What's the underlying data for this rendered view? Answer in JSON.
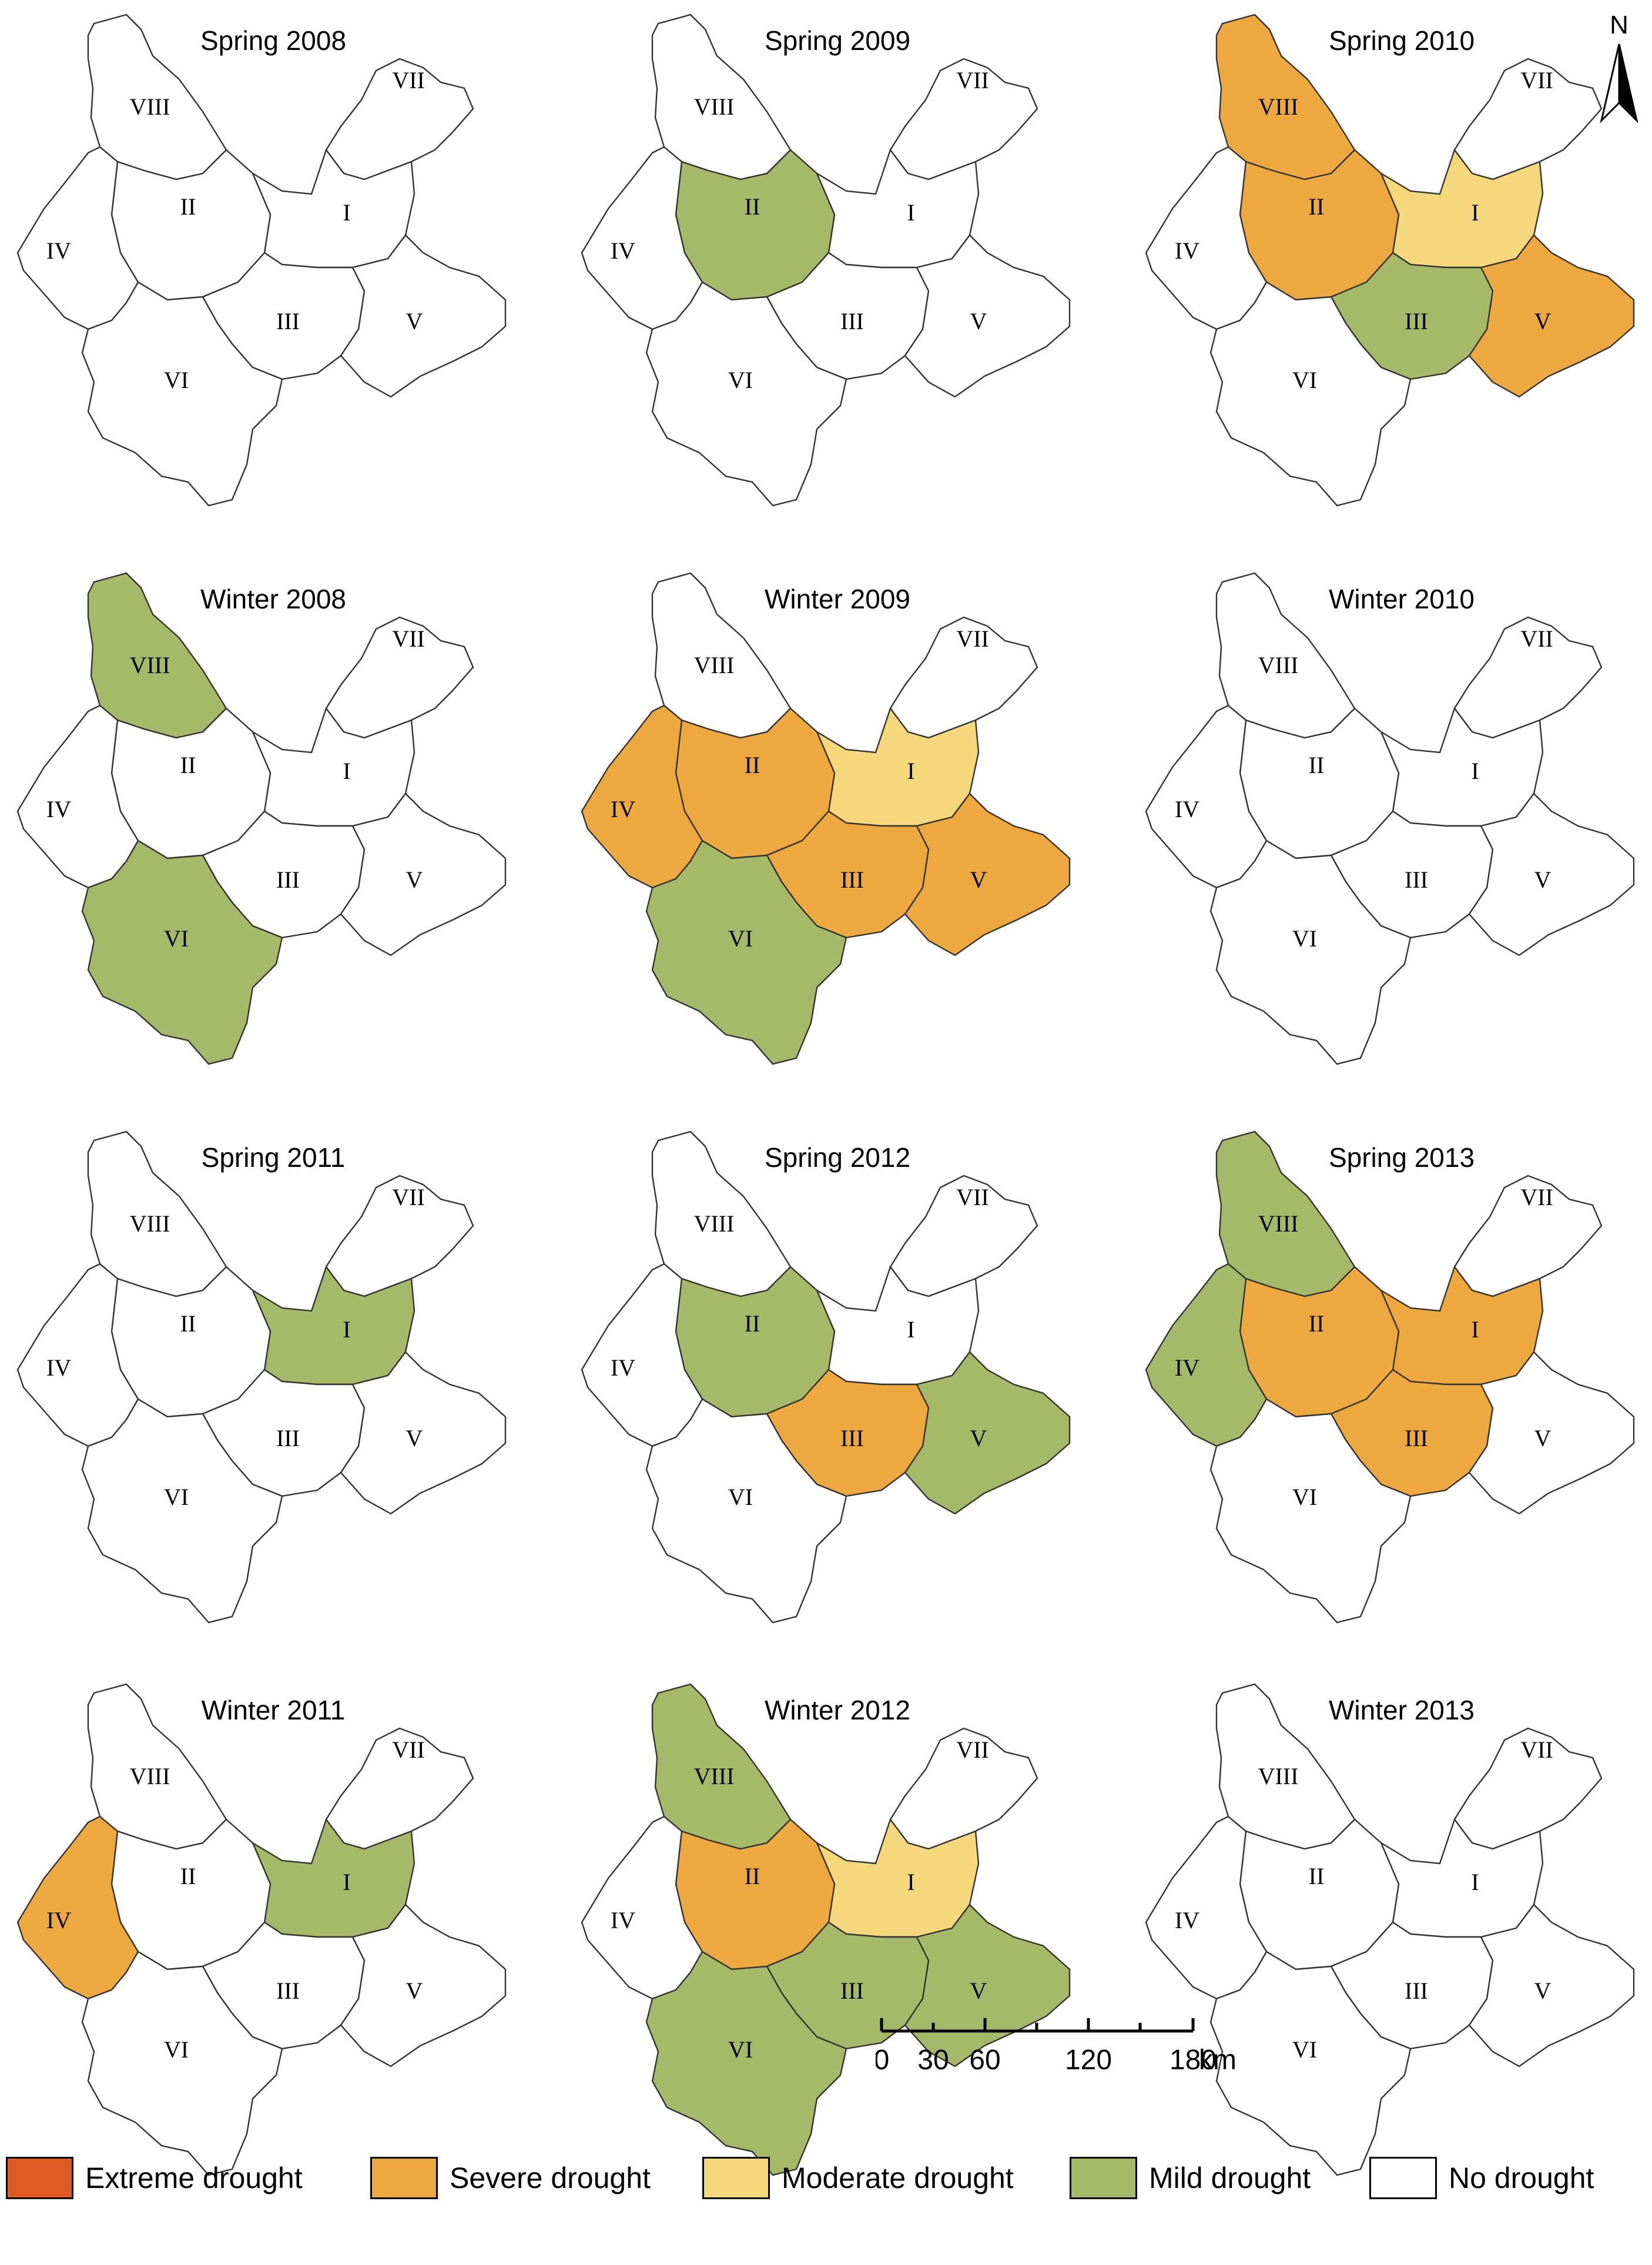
{
  "panels": [
    {
      "title": "Spring 2008",
      "regions": {
        "I": "none",
        "II": "none",
        "III": "none",
        "IV": "none",
        "V": "none",
        "VI": "none",
        "VII": "none",
        "VIII": "none"
      }
    },
    {
      "title": "Spring 2009",
      "regions": {
        "I": "none",
        "II": "mild",
        "III": "none",
        "IV": "none",
        "V": "none",
        "VI": "none",
        "VII": "none",
        "VIII": "none"
      }
    },
    {
      "title": "Spring 2010",
      "regions": {
        "I": "moderate",
        "II": "severe",
        "III": "mild",
        "IV": "none",
        "V": "severe",
        "VI": "none",
        "VII": "none",
        "VIII": "severe"
      }
    },
    {
      "title": "Winter 2008",
      "regions": {
        "I": "none",
        "II": "none",
        "III": "none",
        "IV": "none",
        "V": "none",
        "VI": "mild",
        "VII": "none",
        "VIII": "mild"
      }
    },
    {
      "title": "Winter 2009",
      "regions": {
        "I": "moderate",
        "II": "severe",
        "III": "severe",
        "IV": "severe",
        "V": "severe",
        "VI": "mild",
        "VII": "none",
        "VIII": "none"
      }
    },
    {
      "title": "Winter 2010",
      "regions": {
        "I": "none",
        "II": "none",
        "III": "none",
        "IV": "none",
        "V": "none",
        "VI": "none",
        "VII": "none",
        "VIII": "none"
      }
    },
    {
      "title": "Spring 2011",
      "regions": {
        "I": "mild",
        "II": "none",
        "III": "none",
        "IV": "none",
        "V": "none",
        "VI": "none",
        "VII": "none",
        "VIII": "none"
      }
    },
    {
      "title": "Spring 2012",
      "regions": {
        "I": "none",
        "II": "mild",
        "III": "severe",
        "IV": "none",
        "V": "mild",
        "VI": "none",
        "VII": "none",
        "VIII": "none"
      }
    },
    {
      "title": "Spring 2013",
      "regions": {
        "I": "severe",
        "II": "severe",
        "III": "severe",
        "IV": "mild",
        "V": "none",
        "VI": "none",
        "VII": "none",
        "VIII": "mild"
      }
    },
    {
      "title": "Winter 2011",
      "regions": {
        "I": "mild",
        "II": "none",
        "III": "none",
        "IV": "severe",
        "V": "none",
        "VI": "none",
        "VII": "none",
        "VIII": "none"
      }
    },
    {
      "title": "Winter 2012",
      "regions": {
        "I": "moderate",
        "II": "severe",
        "III": "mild",
        "IV": "none",
        "V": "mild",
        "VI": "mild",
        "VII": "none",
        "VIII": "mild"
      }
    },
    {
      "title": "Winter 2013",
      "regions": {
        "I": "none",
        "II": "none",
        "III": "none",
        "IV": "none",
        "V": "none",
        "VI": "none",
        "VII": "none",
        "VIII": "none"
      }
    }
  ],
  "region_labels": [
    "I",
    "II",
    "III",
    "IV",
    "V",
    "VI",
    "VII",
    "VIII"
  ],
  "legend": [
    {
      "key": "extreme",
      "label": "Extreme drought",
      "color": "#df5a25"
    },
    {
      "key": "severe",
      "label": "Severe  drought",
      "color": "#eda93f"
    },
    {
      "key": "moderate",
      "label": "Moderate drought",
      "color": "#f5d77c"
    },
    {
      "key": "mild",
      "label": "Mild drought",
      "color": "#a5b969"
    },
    {
      "key": "none",
      "label": "No drought",
      "color": "#ffffff"
    }
  ],
  "scale_bar": {
    "ticks": [
      "0",
      "30",
      "60",
      "120",
      "180"
    ],
    "unit": "km"
  },
  "north_arrow": {
    "label": "N",
    "icon": "north-arrow-icon"
  }
}
